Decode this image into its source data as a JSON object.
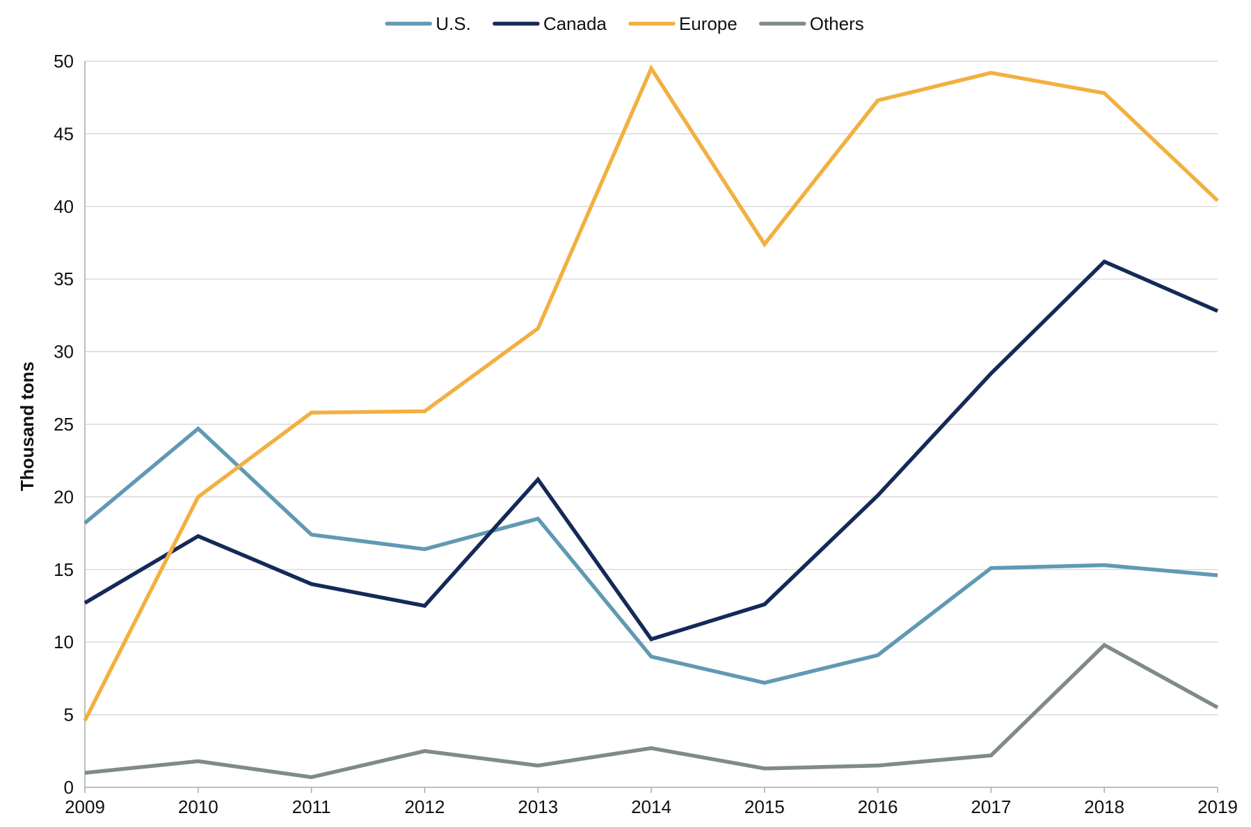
{
  "chart_data": {
    "type": "line",
    "title": "",
    "xlabel": "",
    "ylabel": "Thousand tons",
    "x": [
      2009,
      2010,
      2011,
      2012,
      2013,
      2014,
      2015,
      2016,
      2017,
      2018,
      2019
    ],
    "xlim": [
      2009,
      2019
    ],
    "ylim": [
      0,
      50
    ],
    "y_ticks": [
      0,
      5,
      10,
      15,
      20,
      25,
      30,
      35,
      40,
      45,
      50
    ],
    "x_ticks": [
      2009,
      2010,
      2011,
      2012,
      2013,
      2014,
      2015,
      2016,
      2017,
      2018,
      2019
    ],
    "grid": "horizontal",
    "legend_position": "top-center",
    "series": [
      {
        "name": "U.S.",
        "color": "#6199b3",
        "values": [
          18.2,
          24.7,
          17.4,
          16.4,
          18.5,
          9.0,
          7.2,
          9.1,
          15.1,
          15.3,
          14.6
        ]
      },
      {
        "name": "Canada",
        "color": "#142a57",
        "values": [
          12.7,
          17.3,
          14.0,
          12.5,
          21.2,
          10.2,
          12.6,
          20.1,
          28.5,
          36.2,
          32.8
        ]
      },
      {
        "name": "Europe",
        "color": "#f2b041",
        "values": [
          4.6,
          20.0,
          25.8,
          25.9,
          31.6,
          49.5,
          37.4,
          47.3,
          49.2,
          47.8,
          40.4
        ]
      },
      {
        "name": "Others",
        "color": "#7f8a8b",
        "values": [
          1.0,
          1.8,
          0.7,
          2.5,
          1.5,
          2.7,
          1.3,
          1.5,
          2.2,
          9.8,
          5.5
        ]
      }
    ]
  }
}
